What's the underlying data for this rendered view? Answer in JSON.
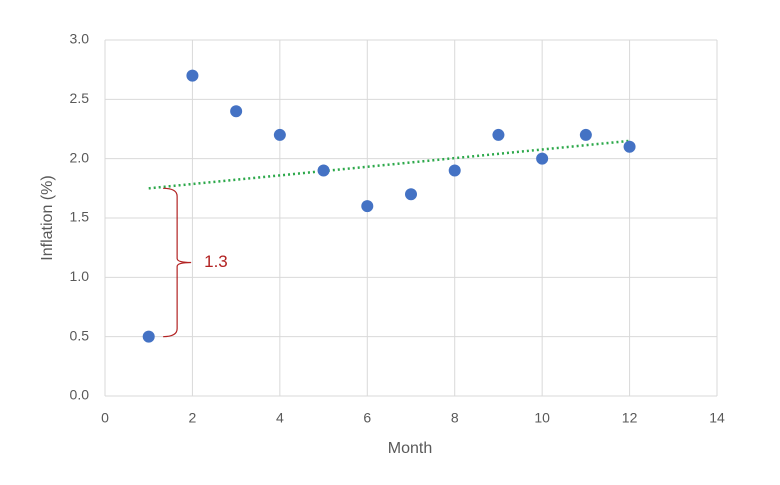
{
  "chart_data": {
    "type": "scatter",
    "x_label": "Month",
    "y_label": "Inflation (%)",
    "series": [
      {
        "name": "Inflation",
        "color": "#4472c4",
        "x": [
          1,
          2,
          3,
          4,
          5,
          6,
          7,
          8,
          9,
          10,
          11,
          12
        ],
        "values": [
          0.5,
          2.7,
          2.4,
          2.2,
          1.9,
          1.6,
          1.7,
          1.9,
          2.2,
          2.0,
          2.2,
          2.1
        ]
      }
    ],
    "trendline": {
      "color": "#2ca84a",
      "x": [
        1,
        12
      ],
      "values": [
        1.75,
        2.15
      ]
    },
    "annotation": {
      "text": "1.3",
      "color": "#b22222",
      "x": 1.65,
      "y_range": [
        0.5,
        1.75
      ]
    },
    "xlim": [
      0,
      14
    ],
    "xticks": [
      0,
      2,
      4,
      6,
      8,
      10,
      12,
      14
    ],
    "ylim": [
      0,
      3
    ],
    "yticks": [
      {
        "value": 0,
        "label": "0.0"
      },
      {
        "value": 0.5,
        "label": "0.5"
      },
      {
        "value": 1,
        "label": "1.0"
      },
      {
        "value": 1.5,
        "label": "1.5"
      },
      {
        "value": 2,
        "label": "2.0"
      },
      {
        "value": 2.5,
        "label": "2.5"
      },
      {
        "value": 3,
        "label": "3.0"
      }
    ],
    "grid": true
  }
}
